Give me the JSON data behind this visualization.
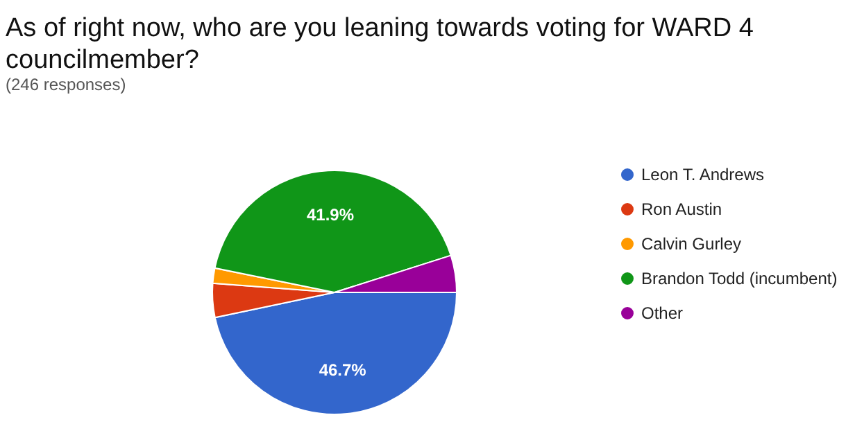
{
  "chart_data": {
    "type": "pie",
    "title": "As of right now, who are you leaning towards voting for WARD 4 councilmember?",
    "subtitle": "(246 responses)",
    "categories": [
      "Leon T. Andrews",
      "Ron Austin",
      "Calvin Gurley",
      "Brandon Todd (incumbent)",
      "Other"
    ],
    "values": [
      46.7,
      4.5,
      2.0,
      41.9,
      4.9
    ],
    "colors": [
      "#3366cc",
      "#dc3912",
      "#ff9900",
      "#109618",
      "#990099"
    ],
    "value_labels": [
      "46.7%",
      null,
      null,
      "41.9%",
      null
    ],
    "legend": "right"
  }
}
